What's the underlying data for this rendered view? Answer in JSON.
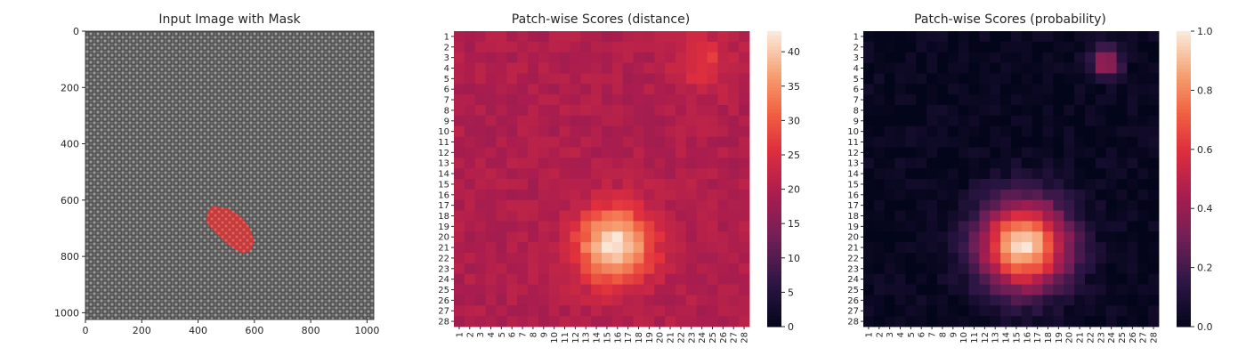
{
  "chart_data": [
    {
      "type": "image",
      "title": "Input Image with Mask",
      "xlim": [
        0,
        1024
      ],
      "ylim": [
        1024,
        0
      ],
      "x_ticks": [
        0,
        200,
        400,
        600,
        800,
        1000
      ],
      "y_ticks": [
        0,
        200,
        400,
        600,
        800,
        1000
      ],
      "image_description_colors": {
        "fabric_dark": "#3c3c3c",
        "fabric_light": "#a0a0a0",
        "mask": "#e43a3a"
      },
      "mask_polygon": [
        [
          450,
          620
        ],
        [
          510,
          630
        ],
        [
          555,
          660
        ],
        [
          585,
          700
        ],
        [
          600,
          745
        ],
        [
          588,
          780
        ],
        [
          560,
          790
        ],
        [
          530,
          775
        ],
        [
          495,
          750
        ],
        [
          455,
          710
        ],
        [
          430,
          680
        ],
        [
          432,
          645
        ]
      ]
    },
    {
      "type": "heatmap",
      "title": "Patch-wise Scores (distance)",
      "rows": 28,
      "cols": 28,
      "row_labels": [
        "1",
        "2",
        "3",
        "4",
        "5",
        "6",
        "7",
        "8",
        "9",
        "10",
        "11",
        "12",
        "13",
        "14",
        "15",
        "16",
        "17",
        "18",
        "19",
        "20",
        "21",
        "22",
        "23",
        "24",
        "25",
        "26",
        "27",
        "28"
      ],
      "col_labels": [
        "1",
        "2",
        "3",
        "4",
        "5",
        "6",
        "7",
        "8",
        "9",
        "10",
        "11",
        "12",
        "13",
        "14",
        "15",
        "16",
        "17",
        "18",
        "19",
        "20",
        "21",
        "22",
        "23",
        "24",
        "25",
        "26",
        "27",
        "28"
      ],
      "colormap": "rocket",
      "vmin": 0,
      "vmax": 43,
      "colorbar_ticks": [
        0,
        5,
        10,
        15,
        20,
        25,
        30,
        35,
        40
      ],
      "background_value": 20,
      "hotspots": [
        {
          "row": 20.8,
          "col": 15.7,
          "peak": 43,
          "radius": 3.8
        },
        {
          "row": 3.5,
          "col": 24.0,
          "peak": 27,
          "radius": 2.8
        }
      ]
    },
    {
      "type": "heatmap",
      "title": "Patch-wise Scores (probability)",
      "rows": 28,
      "cols": 28,
      "row_labels": [
        "1",
        "2",
        "3",
        "4",
        "5",
        "6",
        "7",
        "8",
        "9",
        "10",
        "11",
        "12",
        "13",
        "14",
        "15",
        "16",
        "17",
        "18",
        "19",
        "20",
        "21",
        "22",
        "23",
        "24",
        "25",
        "26",
        "27",
        "28"
      ],
      "col_labels": [
        "1",
        "2",
        "3",
        "4",
        "5",
        "6",
        "7",
        "8",
        "9",
        "10",
        "11",
        "12",
        "13",
        "14",
        "15",
        "16",
        "17",
        "18",
        "19",
        "20",
        "21",
        "22",
        "23",
        "24",
        "25",
        "26",
        "27",
        "28"
      ],
      "colormap": "rocket",
      "vmin": 0,
      "vmax": 1,
      "colorbar_ticks": [
        "0.0",
        "0.2",
        "0.4",
        "0.6",
        "0.8",
        "1.0"
      ],
      "background_value": 0.02,
      "hotspots": [
        {
          "row": 20.8,
          "col": 15.7,
          "peak": 0.97,
          "radius": 4.5
        },
        {
          "row": 3.5,
          "col": 23.5,
          "peak": 0.45,
          "radius": 1.6
        }
      ]
    }
  ]
}
